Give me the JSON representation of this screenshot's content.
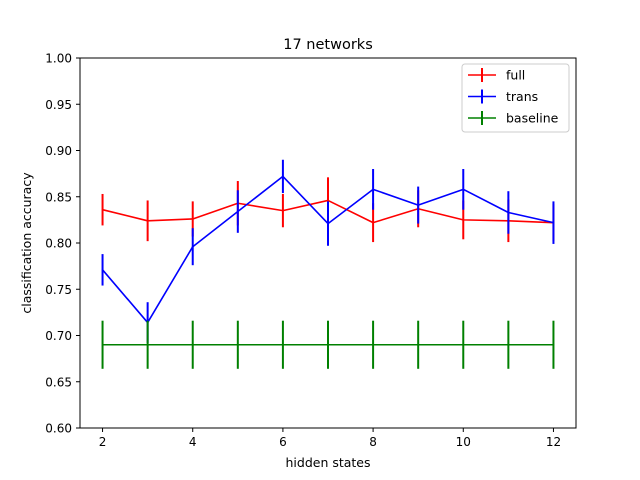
{
  "chart_data": {
    "type": "line",
    "title": "17 networks",
    "xlabel": "hidden states",
    "ylabel": "classification accuracy",
    "xlim": [
      1.5,
      12.5
    ],
    "ylim": [
      0.6,
      1.0
    ],
    "xticks": [
      2,
      4,
      6,
      8,
      10,
      12
    ],
    "xtick_labels": [
      "2",
      "4",
      "6",
      "8",
      "10",
      "12"
    ],
    "yticks": [
      0.6,
      0.65,
      0.7,
      0.75,
      0.8,
      0.85,
      0.9,
      0.95,
      1.0
    ],
    "ytick_labels": [
      "0.60",
      "0.65",
      "0.70",
      "0.75",
      "0.80",
      "0.85",
      "0.90",
      "0.95",
      "1.00"
    ],
    "grid": false,
    "legend_position": "top-right",
    "x": [
      2,
      3,
      4,
      5,
      6,
      7,
      8,
      9,
      10,
      11,
      12
    ],
    "series": [
      {
        "name": "full",
        "color": "#ff0000",
        "values": [
          0.836,
          0.824,
          0.826,
          0.843,
          0.835,
          0.846,
          0.822,
          0.837,
          0.825,
          0.824,
          0.822
        ],
        "errors": [
          0.017,
          0.022,
          0.019,
          0.024,
          0.018,
          0.025,
          0.021,
          0.02,
          0.021,
          0.023,
          0.02
        ]
      },
      {
        "name": "trans",
        "color": "#0000ff",
        "values": [
          0.771,
          0.714,
          0.796,
          0.834,
          0.872,
          0.821,
          0.858,
          0.841,
          0.858,
          0.833,
          0.822
        ],
        "errors": [
          0.017,
          0.022,
          0.02,
          0.023,
          0.018,
          0.024,
          0.022,
          0.02,
          0.022,
          0.023,
          0.023
        ]
      },
      {
        "name": "baseline",
        "color": "#008000",
        "values": [
          0.69,
          0.69,
          0.69,
          0.69,
          0.69,
          0.69,
          0.69,
          0.69,
          0.69,
          0.69,
          0.69
        ],
        "errors": [
          0.026,
          0.026,
          0.026,
          0.026,
          0.026,
          0.026,
          0.026,
          0.026,
          0.026,
          0.026,
          0.026
        ]
      }
    ]
  }
}
